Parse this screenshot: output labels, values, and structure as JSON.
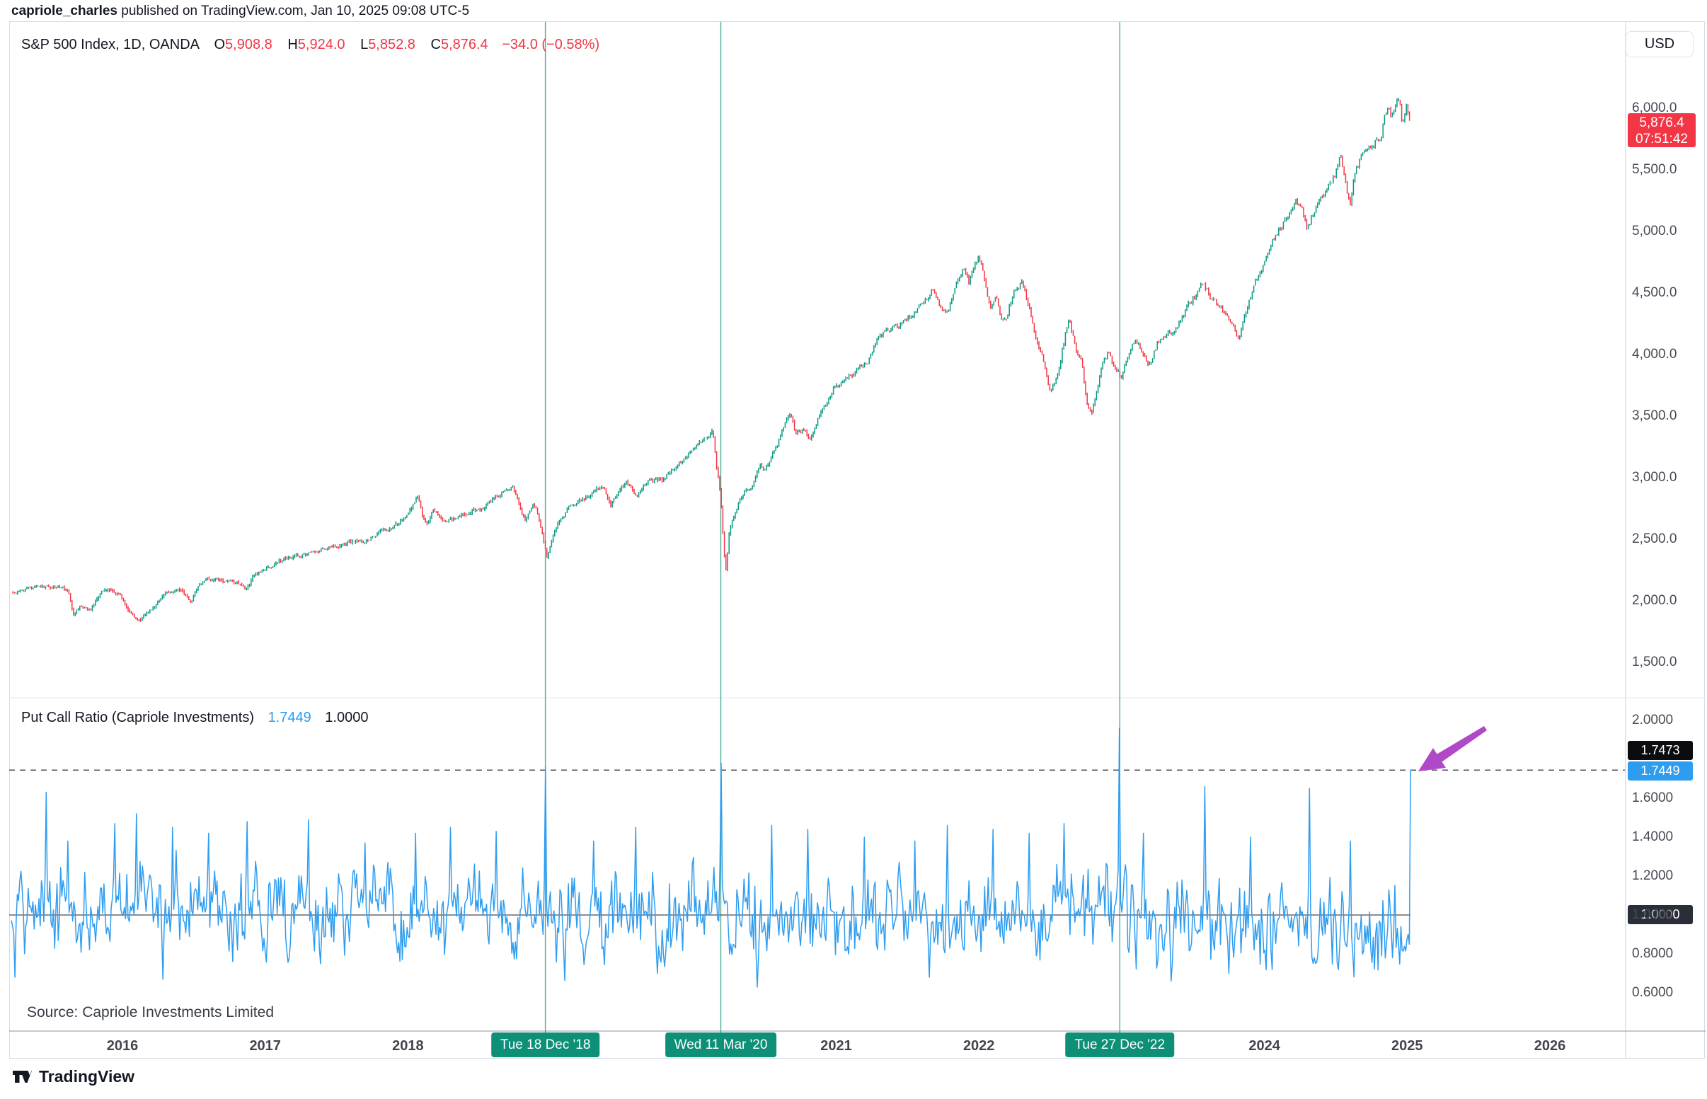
{
  "header": {
    "username": "capriole_charles",
    "published_suffix": " published on TradingView.com, Jan 10, 2025 09:08 UTC-5"
  },
  "main_panel": {
    "legend": {
      "symbol": "S&P 500 Index, 1D, OANDA",
      "ohlc": [
        {
          "label": "O",
          "value": "5,908.8"
        },
        {
          "label": "H",
          "value": "5,924.0"
        },
        {
          "label": "L",
          "value": "5,852.8"
        },
        {
          "label": "C",
          "value": "5,876.4"
        }
      ],
      "change": "−34.0 (−0.58%)"
    },
    "price_axis": {
      "currency": "USD",
      "ticks": [
        {
          "label": "6,000.0",
          "value": 6000
        },
        {
          "label": "5,500.0",
          "value": 5500
        },
        {
          "label": "5,000.0",
          "value": 5000
        },
        {
          "label": "4,500.0",
          "value": 4500
        },
        {
          "label": "4,000.0",
          "value": 4000
        },
        {
          "label": "3,500.0",
          "value": 3500
        },
        {
          "label": "3,000.0",
          "value": 3000
        },
        {
          "label": "2,500.0",
          "value": 2500
        },
        {
          "label": "2,000.0",
          "value": 2000
        },
        {
          "label": "1,500.0",
          "value": 1500
        }
      ],
      "last_price_badge": {
        "price": "5,876.4",
        "countdown": "07:51:42"
      }
    }
  },
  "indicator_panel": {
    "legend": {
      "title": "Put Call Ratio (Capriole Investments)",
      "value": "1.7449",
      "base": "1.0000"
    },
    "axis_ticks": [
      {
        "label": "2.0000",
        "value": 2.0
      },
      {
        "label": "1.6000",
        "value": 1.6
      },
      {
        "label": "1.4000",
        "value": 1.4
      },
      {
        "label": "1.2000",
        "value": 1.2
      },
      {
        "label": "1.0000",
        "value": 1.0
      },
      {
        "label": "0.8000",
        "value": 0.8
      },
      {
        "label": "0.6000",
        "value": 0.6
      }
    ],
    "badges": {
      "level_high": "1.7473",
      "current": "1.7449",
      "base": "1.0000"
    }
  },
  "time_axis": {
    "years": [
      {
        "label": "2016",
        "x": 2016
      },
      {
        "label": "2017",
        "x": 2017
      },
      {
        "label": "2018",
        "x": 2018
      },
      {
        "label": "2021",
        "x": 2021
      },
      {
        "label": "2022",
        "x": 2022
      },
      {
        "label": "2024",
        "x": 2024
      },
      {
        "label": "2025",
        "x": 2025
      },
      {
        "label": "2026",
        "x": 2026
      }
    ]
  },
  "events": [
    {
      "label": "Tue 18 Dec '18",
      "x": 2018.963
    },
    {
      "label": "Wed 11 Mar '20",
      "x": 2020.192
    },
    {
      "label": "Tue 27 Dec '22",
      "x": 2022.987
    }
  ],
  "source_note": "Source: Capriole Investments Limited",
  "footer": {
    "logo_text": "TradingView"
  },
  "colors": {
    "up": "#089981",
    "down": "#f23645",
    "pcr_line": "#2e9df0",
    "event_line": "rgba(13,144,119,0.75)",
    "event_badge": "#0d9077",
    "badge_black": "#0b0c10",
    "badge_dark": "#2a2e39",
    "badge_blue": "#2e9df0",
    "badge_red": "#f23645",
    "dashed_line": "#16181d",
    "reference_line": "#474b55",
    "divider": "#e3e5ec",
    "axis_separator": "#c9ccd5",
    "time_axis_line": "#8f939c",
    "arrow": "#b049c8"
  },
  "chart_data": [
    {
      "type": "candlestick",
      "name": "S&P 500 Index",
      "exchange": "OANDA",
      "interval": "1D",
      "panel": "main",
      "x_unit": "decimal_year",
      "visible_x_range": [
        2015.2,
        2026.55
      ],
      "y_ticks": [
        6000,
        5500,
        5000,
        4500,
        4000,
        3500,
        3000,
        2500,
        2000,
        1500
      ],
      "last": {
        "open": 5908.8,
        "high": 5924.0,
        "low": 5852.8,
        "close": 5876.4,
        "change": -34.0,
        "change_pct": -0.58
      },
      "points": [
        [
          2015.21,
          2065
        ],
        [
          2015.3,
          2090
        ],
        [
          2015.42,
          2110
        ],
        [
          2015.55,
          2105
        ],
        [
          2015.62,
          2085
        ],
        [
          2015.655,
          1875
        ],
        [
          2015.7,
          1950
        ],
        [
          2015.78,
          1930
        ],
        [
          2015.85,
          2075
        ],
        [
          2015.92,
          2090
        ],
        [
          2015.98,
          2050
        ],
        [
          2016.05,
          1920
        ],
        [
          2016.12,
          1830
        ],
        [
          2016.2,
          1930
        ],
        [
          2016.3,
          2060
        ],
        [
          2016.42,
          2090
        ],
        [
          2016.48,
          2000
        ],
        [
          2016.52,
          2100
        ],
        [
          2016.58,
          2170
        ],
        [
          2016.67,
          2175
        ],
        [
          2016.75,
          2160
        ],
        [
          2016.83,
          2130
        ],
        [
          2016.86,
          2085
        ],
        [
          2016.92,
          2200
        ],
        [
          2017.0,
          2250
        ],
        [
          2017.15,
          2350
        ],
        [
          2017.25,
          2360
        ],
        [
          2017.35,
          2390
        ],
        [
          2017.45,
          2430
        ],
        [
          2017.55,
          2460
        ],
        [
          2017.63,
          2475
        ],
        [
          2017.7,
          2490
        ],
        [
          2017.8,
          2555
        ],
        [
          2017.9,
          2600
        ],
        [
          2018.0,
          2700
        ],
        [
          2018.07,
          2865
        ],
        [
          2018.1,
          2700
        ],
        [
          2018.13,
          2600
        ],
        [
          2018.18,
          2740
        ],
        [
          2018.25,
          2640
        ],
        [
          2018.33,
          2670
        ],
        [
          2018.42,
          2720
        ],
        [
          2018.5,
          2740
        ],
        [
          2018.58,
          2810
        ],
        [
          2018.67,
          2880
        ],
        [
          2018.73,
          2930
        ],
        [
          2018.78,
          2780
        ],
        [
          2018.82,
          2650
        ],
        [
          2018.85,
          2740
        ],
        [
          2018.89,
          2780
        ],
        [
          2018.93,
          2620
        ],
        [
          2018.975,
          2360
        ],
        [
          2019.0,
          2480
        ],
        [
          2019.05,
          2620
        ],
        [
          2019.13,
          2750
        ],
        [
          2019.22,
          2810
        ],
        [
          2019.3,
          2890
        ],
        [
          2019.37,
          2930
        ],
        [
          2019.42,
          2760
        ],
        [
          2019.47,
          2880
        ],
        [
          2019.53,
          2960
        ],
        [
          2019.6,
          2855
        ],
        [
          2019.65,
          2920
        ],
        [
          2019.7,
          2975
        ],
        [
          2019.78,
          2980
        ],
        [
          2019.85,
          3060
        ],
        [
          2019.92,
          3130
        ],
        [
          2020.0,
          3230
        ],
        [
          2020.05,
          3280
        ],
        [
          2020.1,
          3330
        ],
        [
          2020.135,
          3385
        ],
        [
          2020.16,
          3100
        ],
        [
          2020.19,
          2880
        ],
        [
          2020.21,
          2500
        ],
        [
          2020.225,
          2220
        ],
        [
          2020.25,
          2550
        ],
        [
          2020.3,
          2750
        ],
        [
          2020.35,
          2880
        ],
        [
          2020.42,
          2950
        ],
        [
          2020.47,
          3100
        ],
        [
          2020.5,
          3050
        ],
        [
          2020.55,
          3185
        ],
        [
          2020.6,
          3300
        ],
        [
          2020.65,
          3480
        ],
        [
          2020.68,
          3520
        ],
        [
          2020.72,
          3340
        ],
        [
          2020.78,
          3400
        ],
        [
          2020.82,
          3300
        ],
        [
          2020.88,
          3500
        ],
        [
          2020.95,
          3660
        ],
        [
          2021.0,
          3760
        ],
        [
          2021.05,
          3770
        ],
        [
          2021.1,
          3830
        ],
        [
          2021.16,
          3900
        ],
        [
          2021.22,
          3940
        ],
        [
          2021.3,
          4150
        ],
        [
          2021.38,
          4200
        ],
        [
          2021.45,
          4250
        ],
        [
          2021.53,
          4330
        ],
        [
          2021.6,
          4420
        ],
        [
          2021.68,
          4520
        ],
        [
          2021.73,
          4410
        ],
        [
          2021.78,
          4350
        ],
        [
          2021.85,
          4620
        ],
        [
          2021.9,
          4690
        ],
        [
          2021.93,
          4570
        ],
        [
          2021.97,
          4720
        ],
        [
          2022.0,
          4790
        ],
        [
          2022.04,
          4610
        ],
        [
          2022.08,
          4390
        ],
        [
          2022.12,
          4480
        ],
        [
          2022.16,
          4280
        ],
        [
          2022.2,
          4330
        ],
        [
          2022.25,
          4550
        ],
        [
          2022.3,
          4580
        ],
        [
          2022.35,
          4400
        ],
        [
          2022.4,
          4120
        ],
        [
          2022.45,
          3950
        ],
        [
          2022.5,
          3680
        ],
        [
          2022.55,
          3830
        ],
        [
          2022.6,
          4130
        ],
        [
          2022.63,
          4290
        ],
        [
          2022.68,
          4050
        ],
        [
          2022.72,
          3920
        ],
        [
          2022.75,
          3650
        ],
        [
          2022.79,
          3500
        ],
        [
          2022.83,
          3720
        ],
        [
          2022.87,
          3950
        ],
        [
          2022.9,
          4010
        ],
        [
          2022.94,
          3930
        ],
        [
          2022.97,
          3850
        ],
        [
          2023.0,
          3830
        ],
        [
          2023.05,
          4020
        ],
        [
          2023.1,
          4150
        ],
        [
          2023.15,
          3990
        ],
        [
          2023.19,
          3900
        ],
        [
          2023.25,
          4090
        ],
        [
          2023.3,
          4140
        ],
        [
          2023.37,
          4190
        ],
        [
          2023.45,
          4380
        ],
        [
          2023.5,
          4450
        ],
        [
          2023.56,
          4570
        ],
        [
          2023.62,
          4480
        ],
        [
          2023.68,
          4400
        ],
        [
          2023.73,
          4330
        ],
        [
          2023.78,
          4250
        ],
        [
          2023.82,
          4140
        ],
        [
          2023.87,
          4360
        ],
        [
          2023.93,
          4550
        ],
        [
          2024.0,
          4770
        ],
        [
          2024.05,
          4900
        ],
        [
          2024.1,
          5000
        ],
        [
          2024.15,
          5120
        ],
        [
          2024.22,
          5250
        ],
        [
          2024.27,
          5150
        ],
        [
          2024.3,
          5010
        ],
        [
          2024.35,
          5180
        ],
        [
          2024.4,
          5300
        ],
        [
          2024.45,
          5360
        ],
        [
          2024.5,
          5480
        ],
        [
          2024.53,
          5610
        ],
        [
          2024.57,
          5400
        ],
        [
          2024.6,
          5220
        ],
        [
          2024.63,
          5450
        ],
        [
          2024.68,
          5600
        ],
        [
          2024.72,
          5630
        ],
        [
          2024.75,
          5680
        ],
        [
          2024.78,
          5740
        ],
        [
          2024.82,
          5800
        ],
        [
          2024.85,
          5980
        ],
        [
          2024.87,
          6010
        ],
        [
          2024.89,
          5900
        ],
        [
          2024.92,
          6030
        ],
        [
          2024.945,
          6090
        ],
        [
          2024.96,
          5930
        ],
        [
          2024.975,
          5880
        ],
        [
          2024.99,
          6020
        ],
        [
          2025.0,
          6040
        ],
        [
          2025.01,
          5950
        ],
        [
          2025.02,
          5920
        ],
        [
          2025.027,
          5876.4
        ]
      ]
    },
    {
      "type": "line",
      "name": "Put Call Ratio (Capriole Investments)",
      "panel": "lower",
      "x_unit": "decimal_year",
      "y_ticks": [
        2.0,
        1.6,
        1.4,
        1.2,
        1.0,
        0.8,
        0.6
      ],
      "baseline": 1.0,
      "last_value": 1.7449,
      "dashed_level": 1.7449,
      "level_label_black": 1.7473,
      "typical_range": [
        0.72,
        1.45
      ],
      "spikes": [
        [
          2015.47,
          1.63
        ],
        [
          2015.62,
          1.38
        ],
        [
          2015.95,
          1.47
        ],
        [
          2016.1,
          1.52
        ],
        [
          2016.35,
          1.45
        ],
        [
          2016.6,
          1.42
        ],
        [
          2016.87,
          1.48
        ],
        [
          2017.3,
          1.49
        ],
        [
          2017.7,
          1.37
        ],
        [
          2018.05,
          1.42
        ],
        [
          2018.3,
          1.45
        ],
        [
          2018.62,
          1.43
        ],
        [
          2018.963,
          1.76
        ],
        [
          2019.3,
          1.38
        ],
        [
          2019.6,
          1.45
        ],
        [
          2020.192,
          1.78
        ],
        [
          2020.55,
          1.46
        ],
        [
          2020.8,
          1.44
        ],
        [
          2021.2,
          1.4
        ],
        [
          2021.55,
          1.38
        ],
        [
          2021.78,
          1.46
        ],
        [
          2022.1,
          1.44
        ],
        [
          2022.35,
          1.42
        ],
        [
          2022.6,
          1.47
        ],
        [
          2022.987,
          1.96
        ],
        [
          2023.15,
          1.42
        ],
        [
          2023.58,
          1.66
        ],
        [
          2023.9,
          1.4
        ],
        [
          2024.32,
          1.65
        ],
        [
          2024.6,
          1.38
        ]
      ],
      "dips": [
        [
          2015.25,
          0.68
        ],
        [
          2016.28,
          0.67
        ],
        [
          2019.75,
          0.7
        ],
        [
          2020.45,
          0.63
        ],
        [
          2021.65,
          0.68
        ],
        [
          2023.35,
          0.66
        ],
        [
          2023.75,
          0.7
        ],
        [
          2024.52,
          0.72
        ],
        [
          2024.9,
          0.78
        ],
        [
          2024.98,
          0.84
        ]
      ]
    }
  ]
}
